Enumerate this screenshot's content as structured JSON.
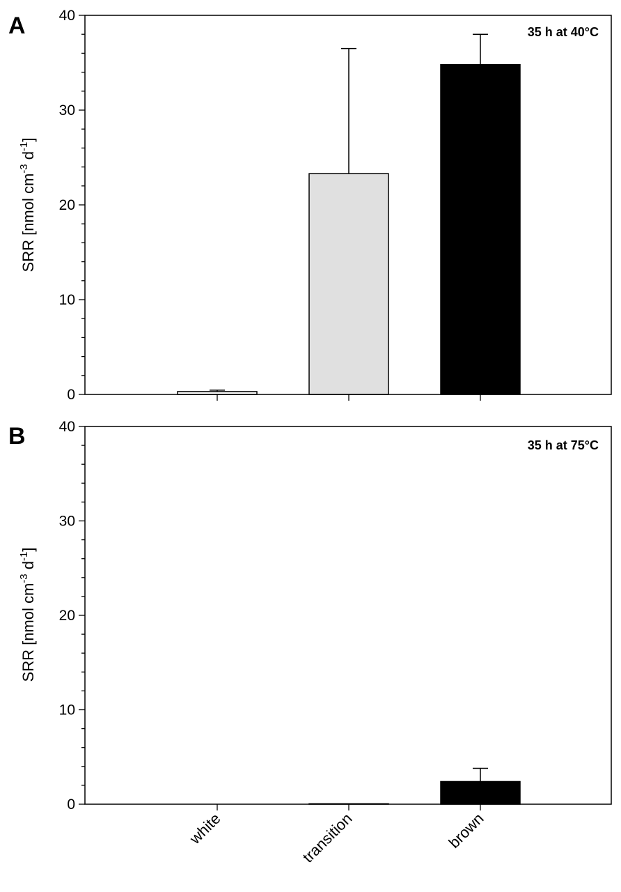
{
  "chart_data": [
    {
      "type": "bar",
      "panel_label": "A",
      "annotation": "35 h at 40°C",
      "ylabel": "SRR [nmol cm-3 d-1]",
      "ylabel_parts": {
        "prefix": "SRR [nmol cm",
        "sup1": "-3",
        "middle": " d",
        "sup2": "-1",
        "suffix": "]"
      },
      "ylim": [
        0,
        40
      ],
      "yticks": [
        0,
        10,
        20,
        30,
        40
      ],
      "categories": [
        "white",
        "transition",
        "brown"
      ],
      "values": [
        0.3,
        23.3,
        34.8
      ],
      "errors": [
        0.15,
        13.2,
        3.2
      ],
      "colors": [
        "#ffffff",
        "#e0e0e0",
        "#000000"
      ]
    },
    {
      "type": "bar",
      "panel_label": "B",
      "annotation": "35 h at 75°C",
      "ylabel": "SRR [nmol cm-3 d-1]",
      "ylabel_parts": {
        "prefix": "SRR [nmol cm",
        "sup1": "-3",
        "middle": " d",
        "sup2": "-1",
        "suffix": "]"
      },
      "ylim": [
        0,
        40
      ],
      "yticks": [
        0,
        10,
        20,
        30,
        40
      ],
      "categories": [
        "white",
        "transition",
        "brown"
      ],
      "values": [
        0.0,
        0.05,
        2.4
      ],
      "errors": [
        0.0,
        0.0,
        1.4
      ],
      "colors": [
        "#ffffff",
        "#e0e0e0",
        "#000000"
      ]
    }
  ]
}
